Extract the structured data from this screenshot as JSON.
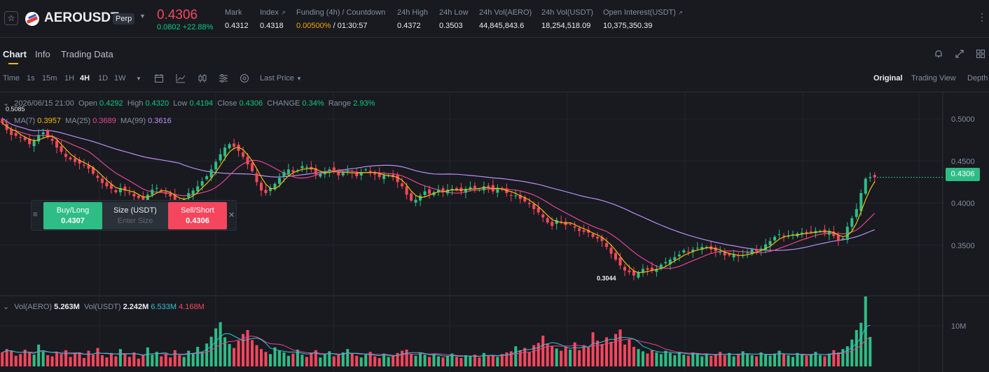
{
  "header": {
    "symbol": "AEROUSDT",
    "badge": "Perp",
    "last_price": "0.4306",
    "change": "0.0802 +22.88%",
    "stats": [
      {
        "label": "Mark",
        "value": "0.4312"
      },
      {
        "label": "Index",
        "value": "0.4318"
      },
      {
        "label": "Funding (4h) / Countdown",
        "value_a": "0.00500%",
        "value_b": "/ 01:30:57"
      },
      {
        "label": "24h High",
        "value": "0.4372"
      },
      {
        "label": "24h Low",
        "value": "0.3503"
      },
      {
        "label": "24h Vol(AERO)",
        "value": "44,845,843.6"
      },
      {
        "label": "24h Vol(USDT)",
        "value": "18,254,518.09"
      },
      {
        "label": "Open Interest(USDT)",
        "value": "10,375,350.39"
      }
    ]
  },
  "tabs": [
    "Chart",
    "Info",
    "Trading Data"
  ],
  "toolbar": {
    "intervals": [
      "Time",
      "1s",
      "15m",
      "1H",
      "4H",
      "1D",
      "1W"
    ],
    "selected_interval": "4H",
    "price_type": "Last Price",
    "views": [
      "Original",
      "Trading View",
      "Depth"
    ],
    "selected_view": "Original"
  },
  "legend": {
    "date": "2026/06/15 21:00",
    "open_label": "Open",
    "open": "0.4292",
    "high_label": "High",
    "high": "0.4320",
    "low_label": "Low",
    "low": "0.4194",
    "close_label": "Close",
    "close": "0.4306",
    "change_label": "CHANGE",
    "change": "0.34%",
    "range_label": "Range",
    "range": "2.93%",
    "ma7_label": "MA(7)",
    "ma7": "0.3957",
    "ma25_label": "MA(25)",
    "ma25": "0.3689",
    "ma99_label": "MA(99)",
    "ma99": "0.3616",
    "vol_label": "Vol(AERO)",
    "vol": "5.263M",
    "volusdt_label": "Vol(USDT)",
    "volusdt": "2.242M",
    "vma1": "6.533M",
    "vma2": "4.168M"
  },
  "order_panel": {
    "buy_label": "Buy/Long",
    "buy_price": "0.4307",
    "size_label": "Size (USDT)",
    "size_placeholder": "Enter Size",
    "sell_label": "Sell/Short",
    "sell_price": "0.4306"
  },
  "price_axis": [
    "0.5000",
    "0.4500",
    "0.4000",
    "0.3500"
  ],
  "volume_axis": [
    "10M"
  ],
  "current_price_tag": "0.4306",
  "min_marker": "0.3044",
  "max_marker": "0.5085",
  "colors": {
    "up": "#2ebd85",
    "down": "#f6465d",
    "ma7": "#f0b90b",
    "ma25": "#e84393",
    "ma99": "#b98ef5",
    "accent": "#f0b90b"
  },
  "chart_data": {
    "type": "candlestick",
    "interval": "4H",
    "y_range": [
      0.295,
      0.515
    ],
    "closes": [
      0.495,
      0.487,
      0.481,
      0.48,
      0.478,
      0.475,
      0.47,
      0.474,
      0.481,
      0.484,
      0.478,
      0.474,
      0.466,
      0.461,
      0.455,
      0.452,
      0.449,
      0.447,
      0.445,
      0.441,
      0.435,
      0.43,
      0.424,
      0.42,
      0.417,
      0.413,
      0.418,
      0.415,
      0.412,
      0.408,
      0.406,
      0.404,
      0.41,
      0.416,
      0.418,
      0.414,
      0.411,
      0.408,
      0.404,
      0.402,
      0.405,
      0.412,
      0.415,
      0.42,
      0.426,
      0.432,
      0.44,
      0.449,
      0.458,
      0.466,
      0.47,
      0.467,
      0.462,
      0.455,
      0.446,
      0.438,
      0.425,
      0.415,
      0.412,
      0.418,
      0.423,
      0.43,
      0.437,
      0.44,
      0.437,
      0.439,
      0.444,
      0.443,
      0.44,
      0.434,
      0.435,
      0.437,
      0.44,
      0.438,
      0.433,
      0.436,
      0.439,
      0.436,
      0.432,
      0.437,
      0.44,
      0.436,
      0.434,
      0.431,
      0.433,
      0.433,
      0.431,
      0.425,
      0.42,
      0.41,
      0.403,
      0.404,
      0.409,
      0.414,
      0.411,
      0.413,
      0.416,
      0.414,
      0.416,
      0.417,
      0.416,
      0.414,
      0.417,
      0.419,
      0.418,
      0.416,
      0.42,
      0.419,
      0.414,
      0.418,
      0.416,
      0.412,
      0.409,
      0.409,
      0.405,
      0.402,
      0.399,
      0.393,
      0.389,
      0.383,
      0.377,
      0.373,
      0.38,
      0.378,
      0.374,
      0.375,
      0.371,
      0.367,
      0.366,
      0.365,
      0.36,
      0.358,
      0.355,
      0.348,
      0.34,
      0.333,
      0.326,
      0.32,
      0.318,
      0.314,
      0.318,
      0.322,
      0.321,
      0.32,
      0.322,
      0.327,
      0.33,
      0.333,
      0.336,
      0.339,
      0.344,
      0.342,
      0.345,
      0.347,
      0.348,
      0.348,
      0.345,
      0.343,
      0.342,
      0.338,
      0.338,
      0.339,
      0.337,
      0.338,
      0.341,
      0.345,
      0.343,
      0.346,
      0.351,
      0.355,
      0.36,
      0.363,
      0.361,
      0.361,
      0.363,
      0.364,
      0.365,
      0.364,
      0.366,
      0.367,
      0.367,
      0.365,
      0.367,
      0.361,
      0.355,
      0.358,
      0.372,
      0.382,
      0.393,
      0.412,
      0.429,
      0.431,
      0.4306
    ],
    "volumes": [
      2.5,
      3.1,
      2.8,
      1.9,
      2.2,
      3.0,
      2.4,
      2.1,
      3.9,
      2.7,
      2.0,
      1.8,
      2.6,
      2.2,
      2.9,
      1.7,
      2.3,
      2.5,
      1.5,
      2.8,
      2.1,
      3.3,
      2.0,
      1.6,
      2.4,
      1.8,
      3.1,
      2.2,
      1.7,
      2.5,
      1.4,
      1.9,
      3.4,
      2.1,
      2.6,
      1.8,
      2.3,
      1.6,
      2.9,
      2.0,
      1.7,
      2.8,
      2.3,
      3.5,
      2.6,
      4.1,
      5.3,
      6.8,
      7.9,
      5.2,
      4.0,
      3.3,
      4.6,
      5.8,
      6.5,
      4.7,
      3.8,
      3.1,
      2.6,
      2.2,
      3.4,
      2.8,
      2.5,
      1.9,
      2.3,
      3.0,
      2.1,
      1.7,
      2.4,
      2.9,
      1.6,
      2.2,
      2.7,
      1.8,
      2.0,
      2.5,
      3.1,
      2.3,
      1.9,
      1.6,
      2.1,
      2.6,
      1.8,
      1.5,
      2.3,
      1.7,
      1.9,
      2.4,
      2.8,
      3.0,
      2.2,
      1.9,
      2.5,
      2.1,
      1.7,
      2.2,
      1.8,
      1.6,
      1.9,
      2.3,
      1.7,
      1.5,
      2.0,
      1.8,
      2.1,
      1.6,
      2.4,
      2.0,
      1.9,
      1.7,
      2.2,
      2.5,
      2.7,
      3.6,
      2.9,
      3.3,
      2.5,
      3.8,
      4.2,
      5.5,
      4.1,
      3.7,
      3.2,
      2.8,
      3.5,
      3.0,
      4.3,
      2.9,
      3.8,
      3.4,
      6.1,
      4.6,
      4.0,
      5.2,
      4.4,
      5.8,
      6.6,
      3.9,
      4.8,
      3.5,
      3.1,
      2.7,
      2.3,
      2.9,
      2.5,
      2.2,
      2.8,
      2.4,
      2.0,
      2.6,
      2.1,
      1.9,
      2.5,
      2.2,
      1.8,
      2.3,
      1.9,
      2.1,
      2.6,
      2.0,
      2.4,
      1.8,
      2.2,
      2.7,
      2.3,
      2.0,
      1.8,
      2.5,
      2.1,
      1.9,
      2.3,
      2.8,
      2.2,
      2.0,
      1.7,
      2.4,
      2.1,
      1.9,
      2.2,
      2.6,
      2.0,
      1.8,
      2.3,
      2.9,
      2.5,
      3.1,
      3.6,
      4.8,
      6.5,
      7.8,
      12.5,
      5.263
    ]
  }
}
